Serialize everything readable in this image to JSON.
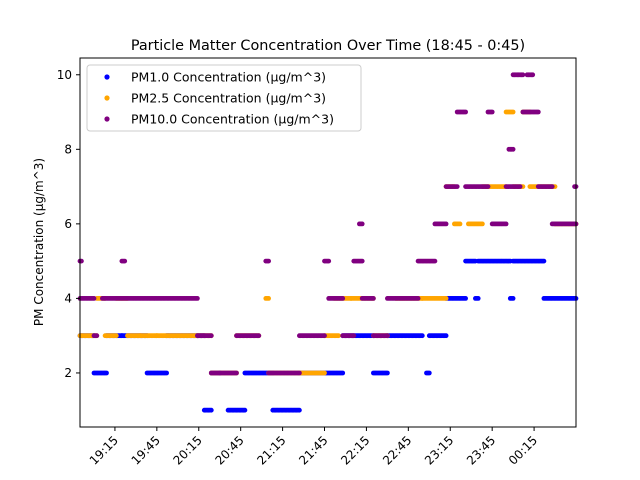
{
  "chart_data": {
    "type": "scatter",
    "title": "Particle Matter Concentration Over Time (18:45 - 0:45)",
    "xlabel": "",
    "ylabel": "PM Concentration (μg/m^3)",
    "x_range": [
      "18:50",
      "00:45"
    ],
    "ylim": [
      0.55,
      10.45
    ],
    "y_ticks": [
      2,
      4,
      6,
      8,
      10
    ],
    "x_ticks": [
      "19:15",
      "19:45",
      "20:15",
      "20:45",
      "21:15",
      "21:45",
      "22:15",
      "22:45",
      "23:15",
      "23:45",
      "00:15"
    ],
    "grid": false,
    "legend_position": "upper-left",
    "series": [
      {
        "name": "PM1.0 Concentration (μg/m^3)",
        "color": "#0000ff",
        "segments": [
          [
            "18:50",
            "19:00",
            3
          ],
          [
            "19:00",
            "19:09",
            2
          ],
          [
            "19:09",
            "19:20",
            3
          ],
          [
            "19:20",
            "19:38",
            3
          ],
          [
            "19:38",
            "19:52",
            2
          ],
          [
            "19:52",
            "20:14",
            3
          ],
          [
            "20:14",
            "20:19",
            3
          ],
          [
            "20:19",
            "20:24",
            1
          ],
          [
            "20:24",
            "20:30",
            2
          ],
          [
            "20:36",
            "20:48",
            1
          ],
          [
            "20:48",
            "21:08",
            2
          ],
          [
            "21:08",
            "21:27",
            1
          ],
          [
            "21:27",
            "21:58",
            2
          ],
          [
            "21:58",
            "22:20",
            3
          ],
          [
            "22:20",
            "22:30",
            2
          ],
          [
            "22:30",
            "22:55",
            3
          ],
          [
            "22:58",
            "23:00",
            2
          ],
          [
            "23:00",
            "23:12",
            3
          ],
          [
            "23:12",
            "23:26",
            4
          ],
          [
            "23:26",
            "23:33",
            5
          ],
          [
            "23:33",
            "23:35",
            4
          ],
          [
            "23:35",
            "23:58",
            5
          ],
          [
            "23:58",
            "24:00",
            4
          ],
          [
            "24:00",
            "24:22",
            5
          ],
          [
            "24:22",
            "24:45",
            4
          ]
        ]
      },
      {
        "name": "PM2.5 Concentration (μg/m^3)",
        "color": "#ffa500",
        "segments": [
          [
            "18:50",
            "19:02",
            3
          ],
          [
            "19:02",
            "19:08",
            4
          ],
          [
            "19:08",
            "19:16",
            3
          ],
          [
            "19:16",
            "19:24",
            4
          ],
          [
            "19:24",
            "19:33",
            3
          ],
          [
            "19:33",
            "19:45",
            3
          ],
          [
            "19:45",
            "20:14",
            3
          ],
          [
            "20:14",
            "20:24",
            3
          ],
          [
            "20:24",
            "20:42",
            2
          ],
          [
            "20:42",
            "20:58",
            3
          ],
          [
            "21:03",
            "21:05",
            4
          ],
          [
            "21:05",
            "21:27",
            2
          ],
          [
            "21:27",
            "21:45",
            2
          ],
          [
            "21:45",
            "21:55",
            3
          ],
          [
            "21:52",
            "22:04",
            4
          ],
          [
            "22:04",
            "22:20",
            4
          ],
          [
            "22:20",
            "22:30",
            3
          ],
          [
            "22:36",
            "22:55",
            4
          ],
          [
            "22:55",
            "23:12",
            4
          ],
          [
            "23:12",
            "23:18",
            7
          ],
          [
            "23:18",
            "23:22",
            6
          ],
          [
            "23:28",
            "23:38",
            6
          ],
          [
            "23:38",
            "23:55",
            7
          ],
          [
            "23:55",
            "24:00",
            9
          ],
          [
            "24:00",
            "24:07",
            7
          ],
          [
            "24:07",
            "24:12",
            9
          ],
          [
            "24:12",
            "24:30",
            7
          ],
          [
            "24:30",
            "24:45",
            6
          ]
        ]
      },
      {
        "name": "PM10.0 Concentration (μg/m^3)",
        "color": "#800080",
        "segments": [
          [
            "18:50",
            "18:51",
            5
          ],
          [
            "18:50",
            "19:00",
            4
          ],
          [
            "19:00",
            "19:02",
            3
          ],
          [
            "19:06",
            "20:14",
            4
          ],
          [
            "19:20",
            "19:22",
            5
          ],
          [
            "20:14",
            "20:24",
            3
          ],
          [
            "20:24",
            "20:30",
            2
          ],
          [
            "20:30",
            "20:42",
            2
          ],
          [
            "20:42",
            "20:58",
            3
          ],
          [
            "21:03",
            "21:05",
            5
          ],
          [
            "21:05",
            "21:27",
            2
          ],
          [
            "21:27",
            "21:45",
            3
          ],
          [
            "21:45",
            "21:48",
            5
          ],
          [
            "21:48",
            "21:58",
            4
          ],
          [
            "21:58",
            "22:06",
            3
          ],
          [
            "22:06",
            "22:12",
            5
          ],
          [
            "22:12",
            "22:20",
            4
          ],
          [
            "22:10",
            "22:12",
            6
          ],
          [
            "22:20",
            "22:30",
            3
          ],
          [
            "22:30",
            "22:52",
            4
          ],
          [
            "22:52",
            "23:04",
            5
          ],
          [
            "23:04",
            "23:12",
            6
          ],
          [
            "23:12",
            "23:20",
            7
          ],
          [
            "23:20",
            "23:26",
            9
          ],
          [
            "23:26",
            "23:42",
            7
          ],
          [
            "23:42",
            "23:45",
            9
          ],
          [
            "23:45",
            "23:55",
            6
          ],
          [
            "23:55",
            "24:05",
            7
          ],
          [
            "23:57",
            "24:00",
            8
          ],
          [
            "24:00",
            "24:07",
            10
          ],
          [
            "24:07",
            "24:18",
            9
          ],
          [
            "24:10",
            "24:14",
            10
          ],
          [
            "24:18",
            "24:28",
            7
          ],
          [
            "24:28",
            "24:45",
            6
          ],
          [
            "24:44",
            "24:45",
            7
          ]
        ]
      }
    ]
  }
}
